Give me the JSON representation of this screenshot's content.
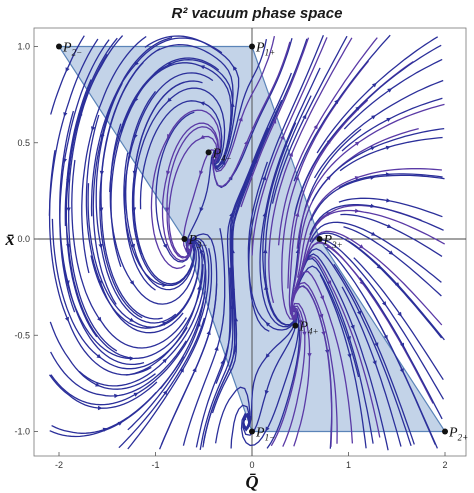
{
  "chart_data": {
    "type": "streamplot",
    "title": "R² vacuum phase space",
    "xlabel": "Q̄",
    "ylabel": "x̄",
    "xlim": [
      -2.1,
      2.0
    ],
    "ylim": [
      -1.1,
      1.06
    ],
    "xticks": [
      {
        "v": -2,
        "label": "-2"
      },
      {
        "v": -1,
        "label": "-1"
      },
      {
        "v": 0,
        "label": "0"
      },
      {
        "v": 1,
        "label": "1"
      },
      {
        "v": 2,
        "label": "2"
      }
    ],
    "yticks": [
      {
        "v": 1.0,
        "label": "1.0"
      },
      {
        "v": 0.5,
        "label": "0.5"
      },
      {
        "v": 0.0,
        "label": "0.0"
      },
      {
        "v": -0.5,
        "label": "-0.5"
      },
      {
        "v": -1.0,
        "label": "-1.0"
      }
    ],
    "region_polygon": [
      [
        -2,
        1
      ],
      [
        0,
        1
      ],
      [
        0.7,
        0
      ],
      [
        2,
        -1
      ],
      [
        0,
        -1
      ],
      [
        -0.7,
        0
      ]
    ],
    "region_color": "#c3d3e8",
    "region_edge_color": "#5b84b8",
    "stream_colors": [
      "#2b2f9a",
      "#5a3aa6",
      "#8a45a0",
      "#c05a7e",
      "#e8783e"
    ],
    "points": [
      {
        "name": "P",
        "sub": "1+",
        "x": 0.0,
        "y": 1.0
      },
      {
        "name": "P",
        "sub": "2−",
        "x": -2.0,
        "y": 1.0
      },
      {
        "name": "P",
        "sub": "3−",
        "x": -0.7,
        "y": 0.0
      },
      {
        "name": "P",
        "sub": "3+",
        "x": 0.7,
        "y": 0.0
      },
      {
        "name": "P",
        "sub": "4−",
        "x": -0.45,
        "y": 0.45
      },
      {
        "name": "P",
        "sub": "4+",
        "x": 0.45,
        "y": -0.45
      },
      {
        "name": "P",
        "sub": "1−",
        "x": 0.0,
        "y": -1.0
      },
      {
        "name": "P",
        "sub": "2+",
        "x": 2.0,
        "y": -1.0
      }
    ]
  }
}
